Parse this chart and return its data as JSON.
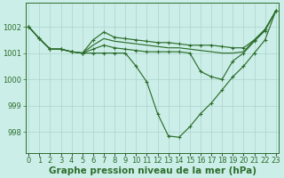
{
  "background_color": "#cceee8",
  "grid_color": "#aad4cc",
  "line_color": "#2d6e2d",
  "marker_color": "#2d6e2d",
  "xlabel": "Graphe pression niveau de la mer (hPa)",
  "xlabel_fontsize": 7.5,
  "xtick_labels": [
    "0",
    "1",
    "2",
    "3",
    "4",
    "5",
    "6",
    "7",
    "8",
    "9",
    "10",
    "11",
    "12",
    "13",
    "14",
    "15",
    "16",
    "17",
    "18",
    "19",
    "20",
    "21",
    "22",
    "23"
  ],
  "yticks": [
    998,
    999,
    1000,
    1001,
    1002
  ],
  "ylim": [
    997.2,
    1002.9
  ],
  "xlim": [
    -0.3,
    23.3
  ],
  "series": [
    [
      1002.0,
      1001.55,
      1001.15,
      1001.15,
      1001.05,
      1001.0,
      1001.0,
      1001.0,
      1001.0,
      1001.0,
      1000.5,
      999.9,
      998.7,
      997.85,
      997.8,
      998.2,
      998.7,
      999.1,
      999.6,
      1000.1,
      1000.5,
      1001.0,
      1001.5,
      1002.6
    ],
    [
      1002.0,
      1001.55,
      1001.15,
      1001.15,
      1001.05,
      1001.0,
      1001.5,
      1001.8,
      1001.6,
      1001.55,
      1001.5,
      1001.45,
      1001.4,
      1001.4,
      1001.35,
      1001.3,
      1001.3,
      1001.3,
      1001.25,
      1001.2,
      1001.2,
      1001.5,
      1001.9,
      1002.6
    ],
    [
      1002.0,
      1001.55,
      1001.15,
      1001.15,
      1001.05,
      1001.0,
      1001.3,
      1001.55,
      1001.45,
      1001.4,
      1001.35,
      1001.3,
      1001.25,
      1001.2,
      1001.2,
      1001.15,
      1001.1,
      1001.05,
      1001.0,
      1001.0,
      1001.05,
      1001.5,
      1001.9,
      1002.6
    ],
    [
      1002.0,
      1001.55,
      1001.15,
      1001.15,
      1001.05,
      1001.0,
      1001.15,
      1001.3,
      1001.2,
      1001.15,
      1001.1,
      1001.05,
      1001.05,
      1001.05,
      1001.05,
      1001.0,
      1000.3,
      1000.1,
      1000.0,
      1000.7,
      1001.0,
      1001.45,
      1001.85,
      1002.6
    ]
  ],
  "markers_on": [
    0,
    1,
    3
  ],
  "tick_fontsize": 6.0,
  "tick_color": "#2d6e2d",
  "axis_color": "#2d6e2d"
}
